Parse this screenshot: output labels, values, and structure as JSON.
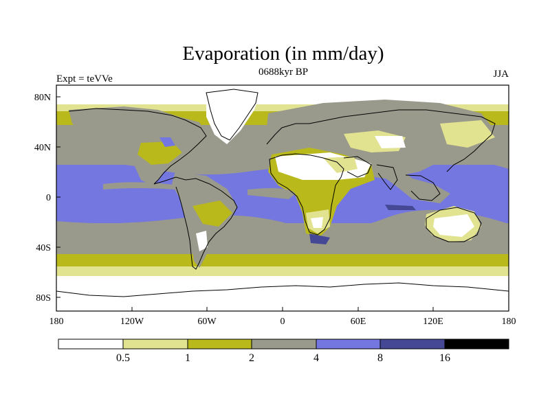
{
  "title": "Evaporation (in mm/day)",
  "subtitle": "0688kyr BP",
  "left_label": "Expt = teVVe",
  "right_label": "JJA",
  "y_ticks": [
    "80N",
    "40N",
    "0",
    "40S",
    "80S"
  ],
  "x_ticks": [
    "180",
    "120W",
    "60W",
    "0",
    "60E",
    "120E",
    "180"
  ],
  "colorbar": {
    "labels": [
      "0.5",
      "1",
      "2",
      "4",
      "8",
      "16"
    ],
    "colors": [
      "#ffffff",
      "#e2e391",
      "#b9b91c",
      "#9a9a8c",
      "#7477e0",
      "#454895",
      "#000000"
    ]
  },
  "colors": {
    "desert": "#ffffff",
    "very_low": "#e2e391",
    "low": "#b9b91c",
    "mid": "#9a9a8c",
    "high": "#7477e0",
    "very_high": "#454895",
    "coastline": "#000000"
  }
}
